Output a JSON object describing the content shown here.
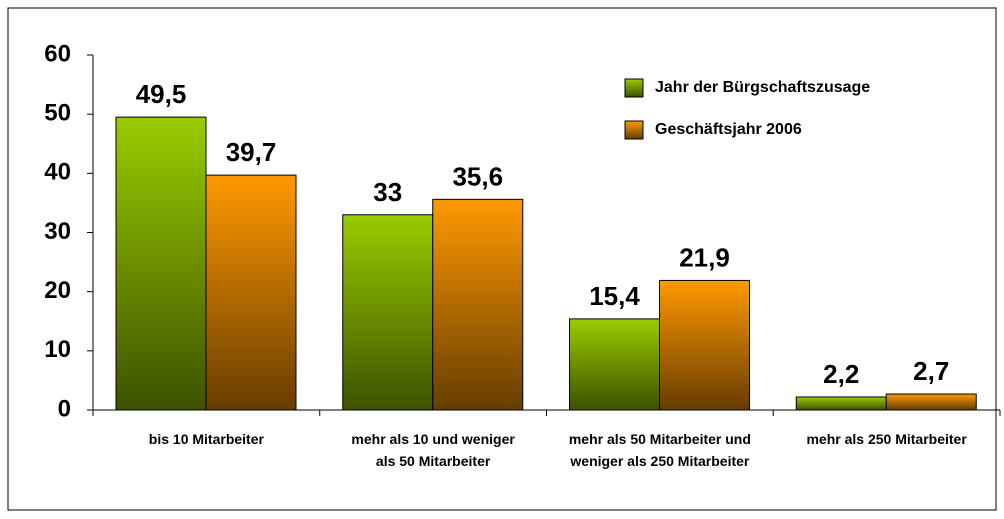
{
  "chart_data": {
    "type": "bar",
    "categories": [
      "bis 10 Mitarbeiter",
      "mehr als 10 und weniger als 50 Mitarbeiter",
      "mehr als 50 Mitarbeiter und weniger als 250 Mitarbeiter",
      "mehr als 250 Mitarbeiter"
    ],
    "series": [
      {
        "name": "Jahr der Bürgschaftszusage",
        "color": "#99cc00",
        "values": [
          49.5,
          33,
          15.4,
          2.2
        ],
        "value_labels": [
          "49,5",
          "33",
          "15,4",
          "2,2"
        ]
      },
      {
        "name": "Geschäftsjahr 2006",
        "color": "#ff9900",
        "values": [
          39.7,
          35.6,
          21.9,
          2.7
        ],
        "value_labels": [
          "39,7",
          "35,6",
          "21,9",
          "2,7"
        ]
      }
    ],
    "ylim": [
      0,
      60
    ],
    "yticks": [
      0,
      10,
      20,
      30,
      40,
      50,
      60
    ],
    "grid": false,
    "legend": "upper right"
  }
}
